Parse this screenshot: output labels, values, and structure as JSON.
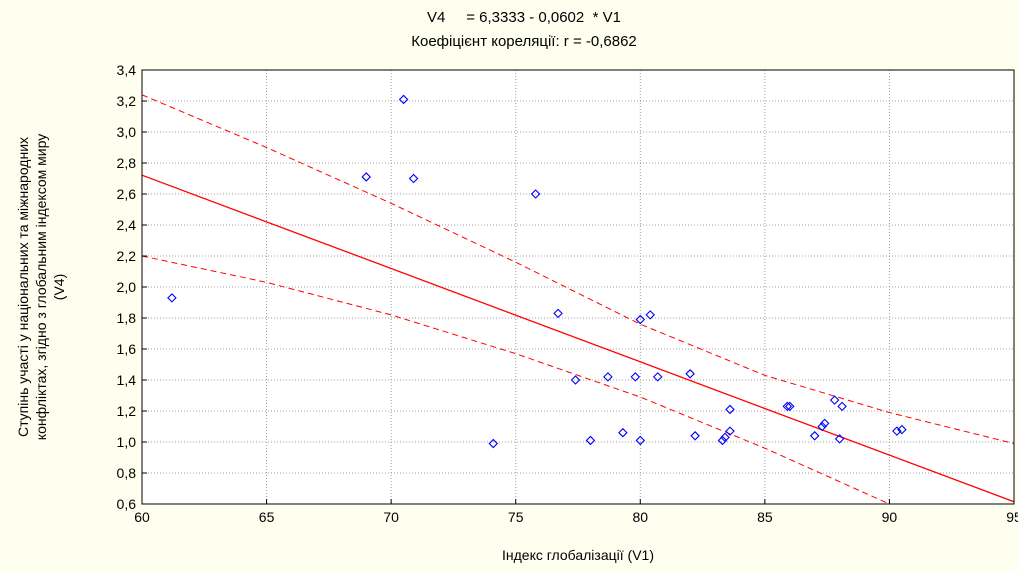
{
  "chart_data": {
    "type": "scatter",
    "title": "V4     = 6,3333 - 0,0602  * V1",
    "subtitle": "Коефіцієнт кореляції: r = -0,6862",
    "xlabel": "Індекс глобалізації  (V1)",
    "ylabel_line1": "Ступінь участі у національних та міжнародних",
    "ylabel_line2": "конфліктах, згідно з глобальним індексом миру",
    "ylabel_line3": "(V4)",
    "xlim": [
      60,
      95
    ],
    "ylim": [
      0.6,
      3.4
    ],
    "x_ticks": [
      "60",
      "65",
      "70",
      "75",
      "80",
      "85",
      "90",
      "95"
    ],
    "y_ticks": [
      "0,6",
      "0,8",
      "1,0",
      "1,2",
      "1,4",
      "1,6",
      "1,8",
      "2,0",
      "2,2",
      "2,4",
      "2,6",
      "2,8",
      "3,0",
      "3,2",
      "3,4"
    ],
    "grid": true,
    "regression": {
      "intercept": 6.3333,
      "slope": -0.0602
    },
    "confidence_band": {
      "x": [
        60,
        65,
        70,
        75,
        80,
        85,
        90,
        95
      ],
      "upper": [
        3.24,
        2.9,
        2.54,
        2.16,
        1.76,
        1.43,
        1.19,
        0.99
      ],
      "lower": [
        2.2,
        2.03,
        1.82,
        1.57,
        1.29,
        0.96,
        0.6,
        0.24
      ]
    },
    "points": [
      {
        "x": 61.2,
        "y": 1.93
      },
      {
        "x": 69.0,
        "y": 2.71
      },
      {
        "x": 70.5,
        "y": 3.21
      },
      {
        "x": 70.9,
        "y": 2.7
      },
      {
        "x": 74.1,
        "y": 0.99
      },
      {
        "x": 75.8,
        "y": 2.6
      },
      {
        "x": 76.7,
        "y": 1.83
      },
      {
        "x": 77.4,
        "y": 1.4
      },
      {
        "x": 78.0,
        "y": 1.01
      },
      {
        "x": 78.7,
        "y": 1.42
      },
      {
        "x": 79.3,
        "y": 1.06
      },
      {
        "x": 79.8,
        "y": 1.42
      },
      {
        "x": 80.0,
        "y": 1.01
      },
      {
        "x": 80.0,
        "y": 1.79
      },
      {
        "x": 80.4,
        "y": 1.82
      },
      {
        "x": 80.7,
        "y": 1.42
      },
      {
        "x": 82.0,
        "y": 1.44
      },
      {
        "x": 82.2,
        "y": 1.04
      },
      {
        "x": 83.3,
        "y": 1.01
      },
      {
        "x": 83.4,
        "y": 1.03
      },
      {
        "x": 83.6,
        "y": 1.07
      },
      {
        "x": 83.6,
        "y": 1.21
      },
      {
        "x": 85.9,
        "y": 1.23
      },
      {
        "x": 86.0,
        "y": 1.23
      },
      {
        "x": 87.0,
        "y": 1.04
      },
      {
        "x": 87.3,
        "y": 1.1
      },
      {
        "x": 87.4,
        "y": 1.12
      },
      {
        "x": 87.8,
        "y": 1.27
      },
      {
        "x": 88.0,
        "y": 1.02
      },
      {
        "x": 88.1,
        "y": 1.23
      },
      {
        "x": 90.3,
        "y": 1.07
      },
      {
        "x": 90.5,
        "y": 1.08
      }
    ],
    "colors": {
      "points": "#0000ff",
      "fit": "#ff0000",
      "band": "#ff0000",
      "grid": "#a0a0a0",
      "plot_bg": "#ffffff",
      "page_bg": "#fffff0"
    }
  }
}
